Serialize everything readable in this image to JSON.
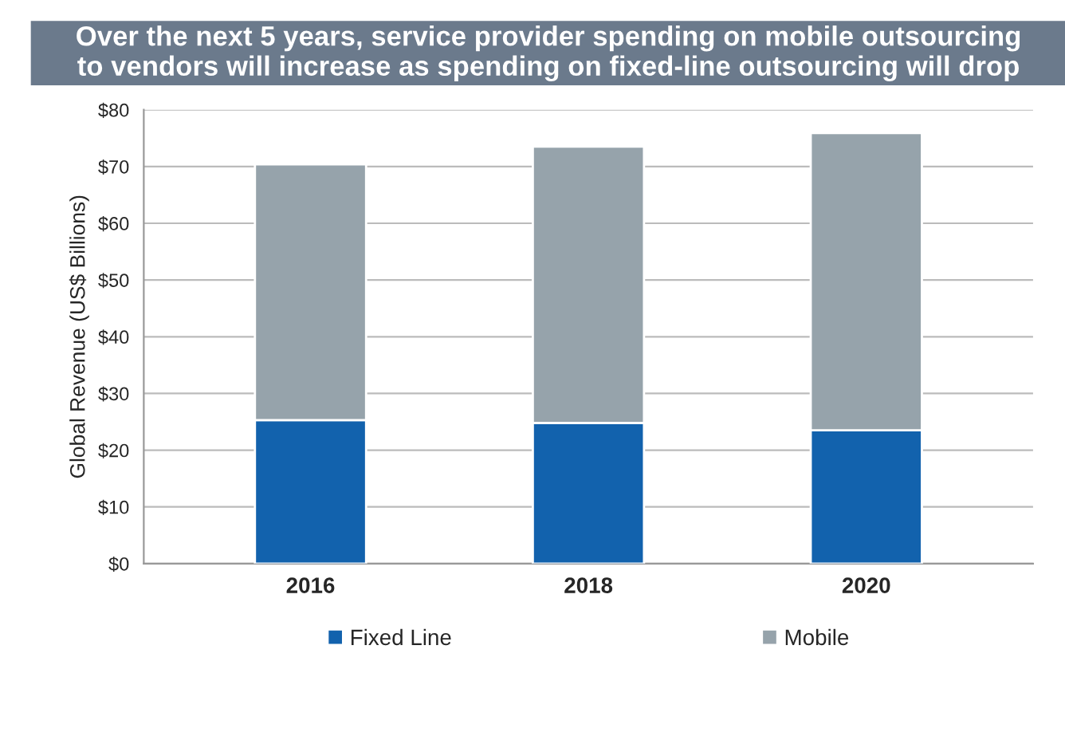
{
  "chart_data": {
    "type": "bar",
    "stacked": true,
    "title": "Over the next 5 years, service provider spending on mobile outsourcing\nto vendors will increase as spending on fixed-line outsourcing will drop",
    "ylabel": "Global Revenue (US$ Billions)",
    "categories": [
      "2016",
      "2018",
      "2020"
    ],
    "series": [
      {
        "name": "Fixed Line",
        "color": "#1262ad",
        "values": [
          25.3,
          24.8,
          23.5
        ]
      },
      {
        "name": "Mobile",
        "color": "#96a3ab",
        "values": [
          45.1,
          48.7,
          52.4
        ]
      }
    ],
    "ylim": [
      0,
      80
    ],
    "yticks": [
      {
        "value": 0,
        "label": "$0"
      },
      {
        "value": 10,
        "label": "$10"
      },
      {
        "value": 20,
        "label": "$20"
      },
      {
        "value": 30,
        "label": "$30"
      },
      {
        "value": 40,
        "label": "$40"
      },
      {
        "value": 50,
        "label": "$50"
      },
      {
        "value": 60,
        "label": "$60"
      },
      {
        "value": 70,
        "label": "$70"
      },
      {
        "value": 80,
        "label": "$80"
      }
    ],
    "grid": "y",
    "legend": "bottom"
  }
}
